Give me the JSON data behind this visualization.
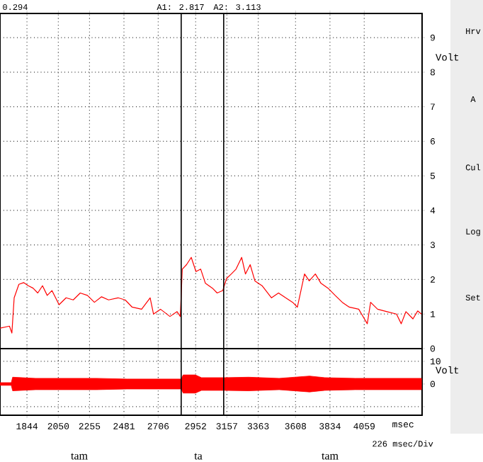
{
  "chart_data": [
    {
      "type": "line",
      "ylabel": "Volt",
      "annotations": [
        "0.294",
        "A1: 2.817",
        "A2: 3.113"
      ],
      "xlim": [
        1667,
        4439
      ],
      "ylim": [
        0,
        9.7
      ],
      "xticks": [
        1844,
        2050,
        2255,
        2481,
        2706,
        2952,
        3157,
        3363,
        3608,
        3834,
        4059
      ],
      "yticks": [
        0,
        1,
        2,
        3,
        4,
        5,
        6,
        7,
        8,
        9
      ],
      "tick_labels": "y",
      "grid": true,
      "ref_lines": [
        {
          "axis": "x",
          "value": 2857
        },
        {
          "axis": "x",
          "value": 3136
        }
      ],
      "series": [
        {
          "color": "#ff0000",
          "x": [
            1667,
            1729,
            1745,
            1760,
            1791,
            1822,
            1853,
            1884,
            1915,
            1946,
            1977,
            2008,
            2055,
            2101,
            2148,
            2194,
            2241,
            2287,
            2334,
            2380,
            2442,
            2489,
            2535,
            2597,
            2653,
            2675,
            2721,
            2783,
            2830,
            2851,
            2864,
            2892,
            2923,
            2954,
            2985,
            3016,
            3062,
            3093,
            3130,
            3155,
            3186,
            3217,
            3254,
            3279,
            3310,
            3341,
            3388,
            3450,
            3496,
            3543,
            3589,
            3620,
            3667,
            3698,
            3738,
            3775,
            3821,
            3868,
            3915,
            3961,
            4023,
            4079,
            4101,
            4147,
            4209,
            4271,
            4302,
            4333,
            4379,
            4410,
            4435
          ],
          "values": [
            0.59,
            0.65,
            0.45,
            1.47,
            1.86,
            1.91,
            1.82,
            1.75,
            1.61,
            1.82,
            1.54,
            1.68,
            1.27,
            1.47,
            1.41,
            1.61,
            1.54,
            1.34,
            1.5,
            1.41,
            1.47,
            1.41,
            1.2,
            1.14,
            1.47,
            1.0,
            1.14,
            0.93,
            1.07,
            0.93,
            2.3,
            2.43,
            2.64,
            2.23,
            2.3,
            1.89,
            1.75,
            1.61,
            1.68,
            2.03,
            2.16,
            2.3,
            2.64,
            2.16,
            2.43,
            1.96,
            1.82,
            1.47,
            1.61,
            1.47,
            1.34,
            1.2,
            2.16,
            1.96,
            2.16,
            1.89,
            1.75,
            1.54,
            1.34,
            1.2,
            1.14,
            0.72,
            1.34,
            1.14,
            1.07,
            1.0,
            0.72,
            1.07,
            0.86,
            1.09,
            1.0
          ]
        }
      ]
    },
    {
      "type": "area",
      "ylabel": "Volt",
      "xlabel": "msec",
      "annotations": [
        "226 msec/Div",
        "tam",
        "ta",
        "tam",
        "Hrv",
        "A",
        "Cul",
        "Log",
        "Set"
      ],
      "xlim": [
        1667,
        4439
      ],
      "ylim": [
        -13.75,
        15.6
      ],
      "xticks": [
        1844,
        2050,
        2255,
        2481,
        2706,
        2952,
        3157,
        3363,
        3608,
        3834,
        4059
      ],
      "yticks": [
        {
          "value": -10,
          "label": null
        },
        0,
        10
      ],
      "grid": true,
      "ref_lines": [
        {
          "axis": "x",
          "value": 2857
        },
        {
          "axis": "x",
          "value": 3136
        }
      ],
      "series": [
        {
          "color": "#ff0000",
          "x": [
            1667,
            1741,
            1750,
            1900,
            2100,
            2300,
            2500,
            2700,
            2850,
            2857,
            2870,
            2950,
            2990,
            3136,
            3140,
            3300,
            3500,
            3700,
            3800,
            4000,
            4200,
            4435
          ],
          "values": [
            0.6,
            0.6,
            3,
            2.5,
            2.5,
            2.5,
            2.2,
            2.2,
            2.2,
            2.2,
            4,
            4,
            2.8,
            2.8,
            2.8,
            3,
            2.5,
            3.5,
            2.8,
            2.5,
            2.5,
            2.5
          ]
        },
        {
          "color": "#ff0000",
          "x": [
            1667,
            1741,
            1750,
            1900,
            2100,
            2300,
            2500,
            2700,
            2850,
            2857,
            2870,
            2950,
            2990,
            3136,
            3140,
            3300,
            3500,
            3700,
            3800,
            4000,
            4200,
            4435
          ],
          "values": [
            -0.6,
            -0.6,
            -3,
            -2.5,
            -2.5,
            -2.5,
            -2.2,
            -2.2,
            -2.2,
            -2.2,
            -4,
            -4,
            -2.8,
            -2.8,
            -2.8,
            -3,
            -2.5,
            -3.5,
            -2.8,
            -2.5,
            -2.5,
            -2.5
          ]
        }
      ]
    }
  ]
}
